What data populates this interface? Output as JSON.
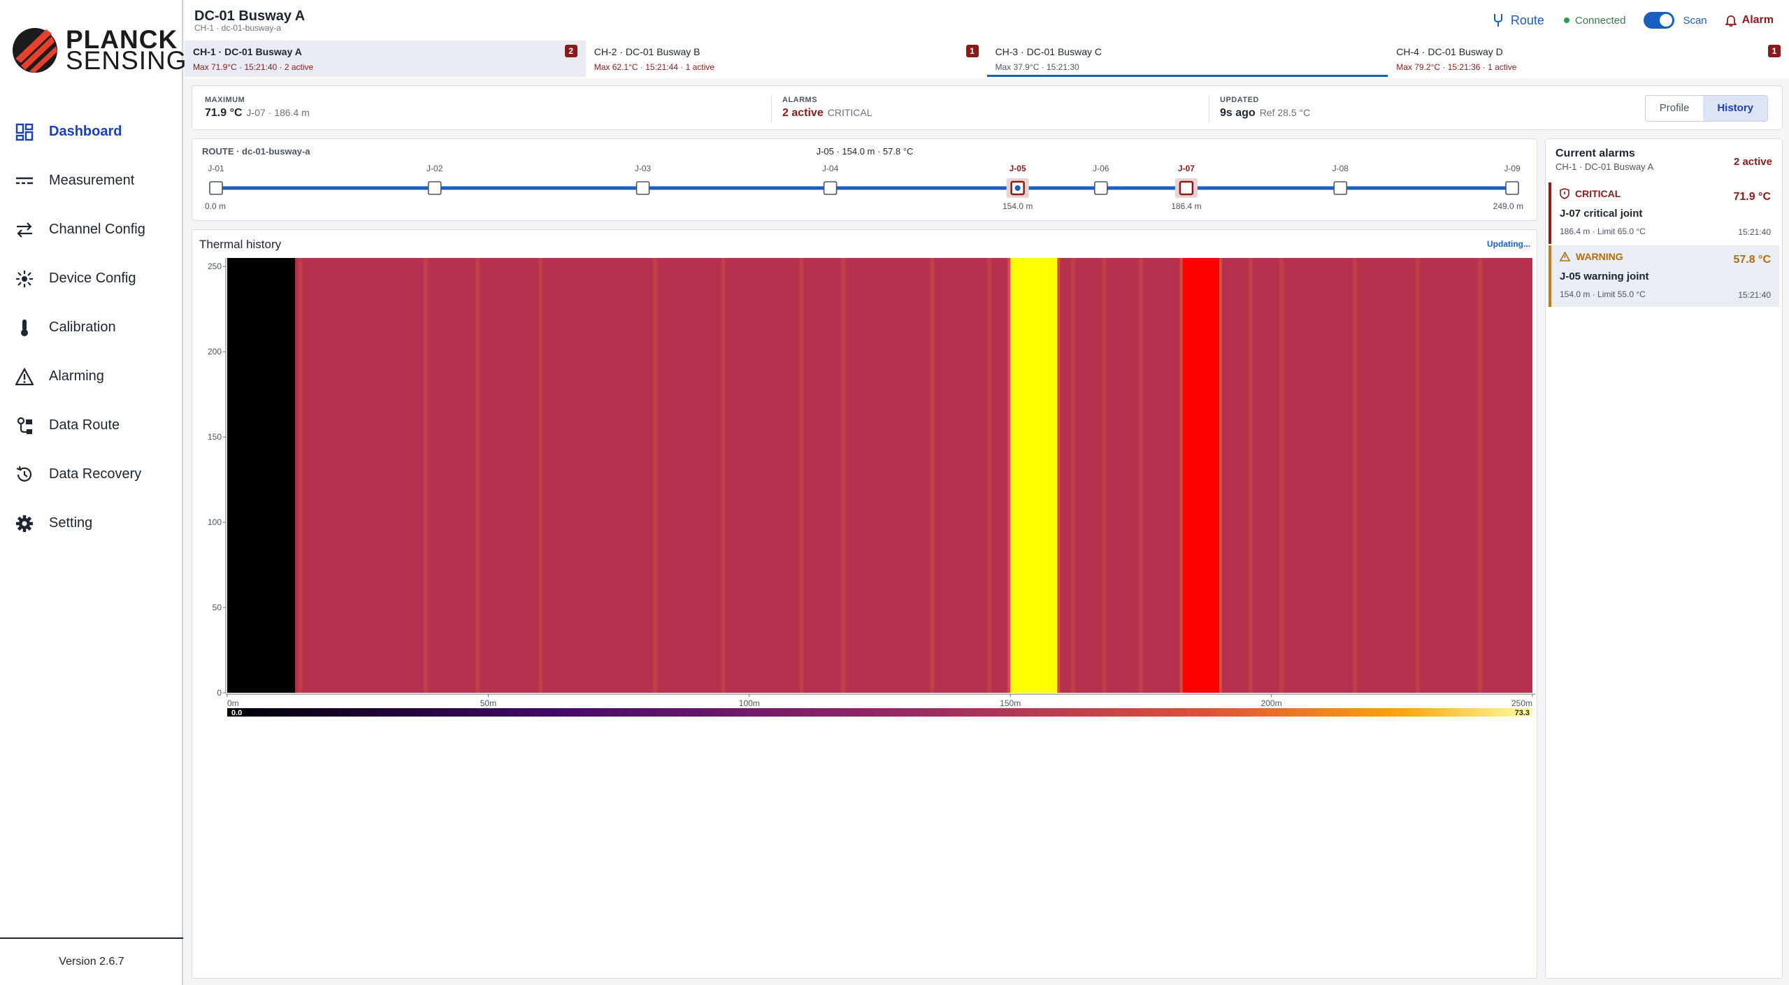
{
  "brand": {
    "line1": "PLANCK",
    "line2": "SENSING"
  },
  "nav": [
    {
      "label": "Dashboard",
      "icon": "dashboard-icon",
      "active": true
    },
    {
      "label": "Measurement",
      "icon": "measurement-icon"
    },
    {
      "label": "Channel Config",
      "icon": "channel-config-icon"
    },
    {
      "label": "Device Config",
      "icon": "device-config-icon"
    },
    {
      "label": "Calibration",
      "icon": "thermometer-icon"
    },
    {
      "label": "Alarming",
      "icon": "warning-icon"
    },
    {
      "label": "Data Route",
      "icon": "data-route-icon"
    },
    {
      "label": "Data Recovery",
      "icon": "history-icon"
    },
    {
      "label": "Setting",
      "icon": "gear-icon"
    }
  ],
  "version": "Version 2.6.7",
  "header": {
    "title": "DC-01 Busway A",
    "subtitle": "CH-1 · dc-01-busway-a",
    "route_label": "Route",
    "status": "Connected",
    "scan_label": "Scan",
    "scan_on": true,
    "alarm_label": "Alarm"
  },
  "channels": [
    {
      "name": "CH-1 · DC-01 Busway A",
      "meta": "Max 71.9°C · 15:21:40 · 2 active",
      "badge": "2"
    },
    {
      "name": "CH-2 · DC-01 Busway B",
      "meta": "Max 62.1°C · 15:21:44 · 1 active",
      "badge": "1"
    },
    {
      "name": "CH-3 · DC-01 Busway C",
      "meta": "Max 37.9°C · 15:21:30",
      "badge": ""
    },
    {
      "name": "CH-4 · DC-01 Busway D",
      "meta": "Max 79.2°C · 15:21:36 · 1 active",
      "badge": "1"
    }
  ],
  "summary": {
    "max_label": "MAXIMUM",
    "max_value": "71.9 °C",
    "max_detail": "J-07 · 186.4 m",
    "alarms_label": "ALARMS",
    "alarms_value": "2 active",
    "alarms_detail": "CRITICAL",
    "updated_label": "UPDATED",
    "updated_value": "9s ago",
    "updated_detail": "Ref 28.5 °C",
    "views": [
      "Profile",
      "History"
    ],
    "active_view": "History"
  },
  "route": {
    "title": "ROUTE · dc-01-busway-a",
    "hover": "J-05 · 154.0 m · 57.8 °C",
    "length": 249.0,
    "start_label": "0.0 m",
    "end_label": "249.0 m",
    "selected": "J-05",
    "joints": [
      {
        "id": "J-01",
        "pos": 0
      },
      {
        "id": "J-02",
        "pos": 42
      },
      {
        "id": "J-03",
        "pos": 82
      },
      {
        "id": "J-04",
        "pos": 118
      },
      {
        "id": "J-05",
        "pos": 154,
        "label": "154.0 m",
        "state": "warning"
      },
      {
        "id": "J-06",
        "pos": 170
      },
      {
        "id": "J-07",
        "pos": 186.4,
        "label": "186.4 m",
        "state": "critical"
      },
      {
        "id": "J-08",
        "pos": 216
      },
      {
        "id": "J-09",
        "pos": 249
      }
    ]
  },
  "thermal": {
    "title": "Thermal history",
    "status": "Updating...",
    "x_ticks": [
      "0m",
      "50m",
      "100m",
      "150m",
      "200m",
      "250m"
    ],
    "x_tick_values": [
      0,
      50,
      100,
      150,
      200,
      250
    ],
    "y_ticks": [
      "0",
      "50",
      "100",
      "150",
      "200",
      "250"
    ],
    "y_tick_values": [
      0,
      50,
      100,
      150,
      200,
      250
    ],
    "x_range": [
      0,
      250
    ],
    "y_range": [
      0,
      255
    ],
    "scale_min": "0.0",
    "scale_max": "73.3",
    "scale_min_value": 0.0,
    "scale_max_value": 73.3,
    "colors": {
      "background": "#b7304d",
      "stripe": "#c54649",
      "warning": "#ffff00",
      "critical": "#ff0000",
      "nodata": "#000000"
    },
    "bands": [
      {
        "from": 0,
        "to": 13,
        "kind": "nodata"
      },
      {
        "from": 150,
        "to": 159,
        "kind": "warning"
      },
      {
        "from": 183,
        "to": 190,
        "kind": "critical"
      }
    ],
    "stripes": [
      14,
      38,
      48,
      60,
      82,
      95,
      110,
      118,
      135,
      146,
      162,
      168,
      175,
      196,
      202,
      216,
      228,
      240
    ]
  },
  "alarms": {
    "title": "Current alarms",
    "subtitle": "CH-1 · DC-01 Busway A",
    "count": "2 active",
    "items": [
      {
        "severity": "CRITICAL",
        "temp": "71.9 °C",
        "name": "J-07 critical joint",
        "detail": "186.4 m · Limit 65.0 °C",
        "time": "15:21:40"
      },
      {
        "severity": "WARNING",
        "temp": "57.8 °C",
        "name": "J-05 warning joint",
        "detail": "154.0 m · Limit 55.0 °C",
        "time": "15:21:40"
      }
    ]
  }
}
